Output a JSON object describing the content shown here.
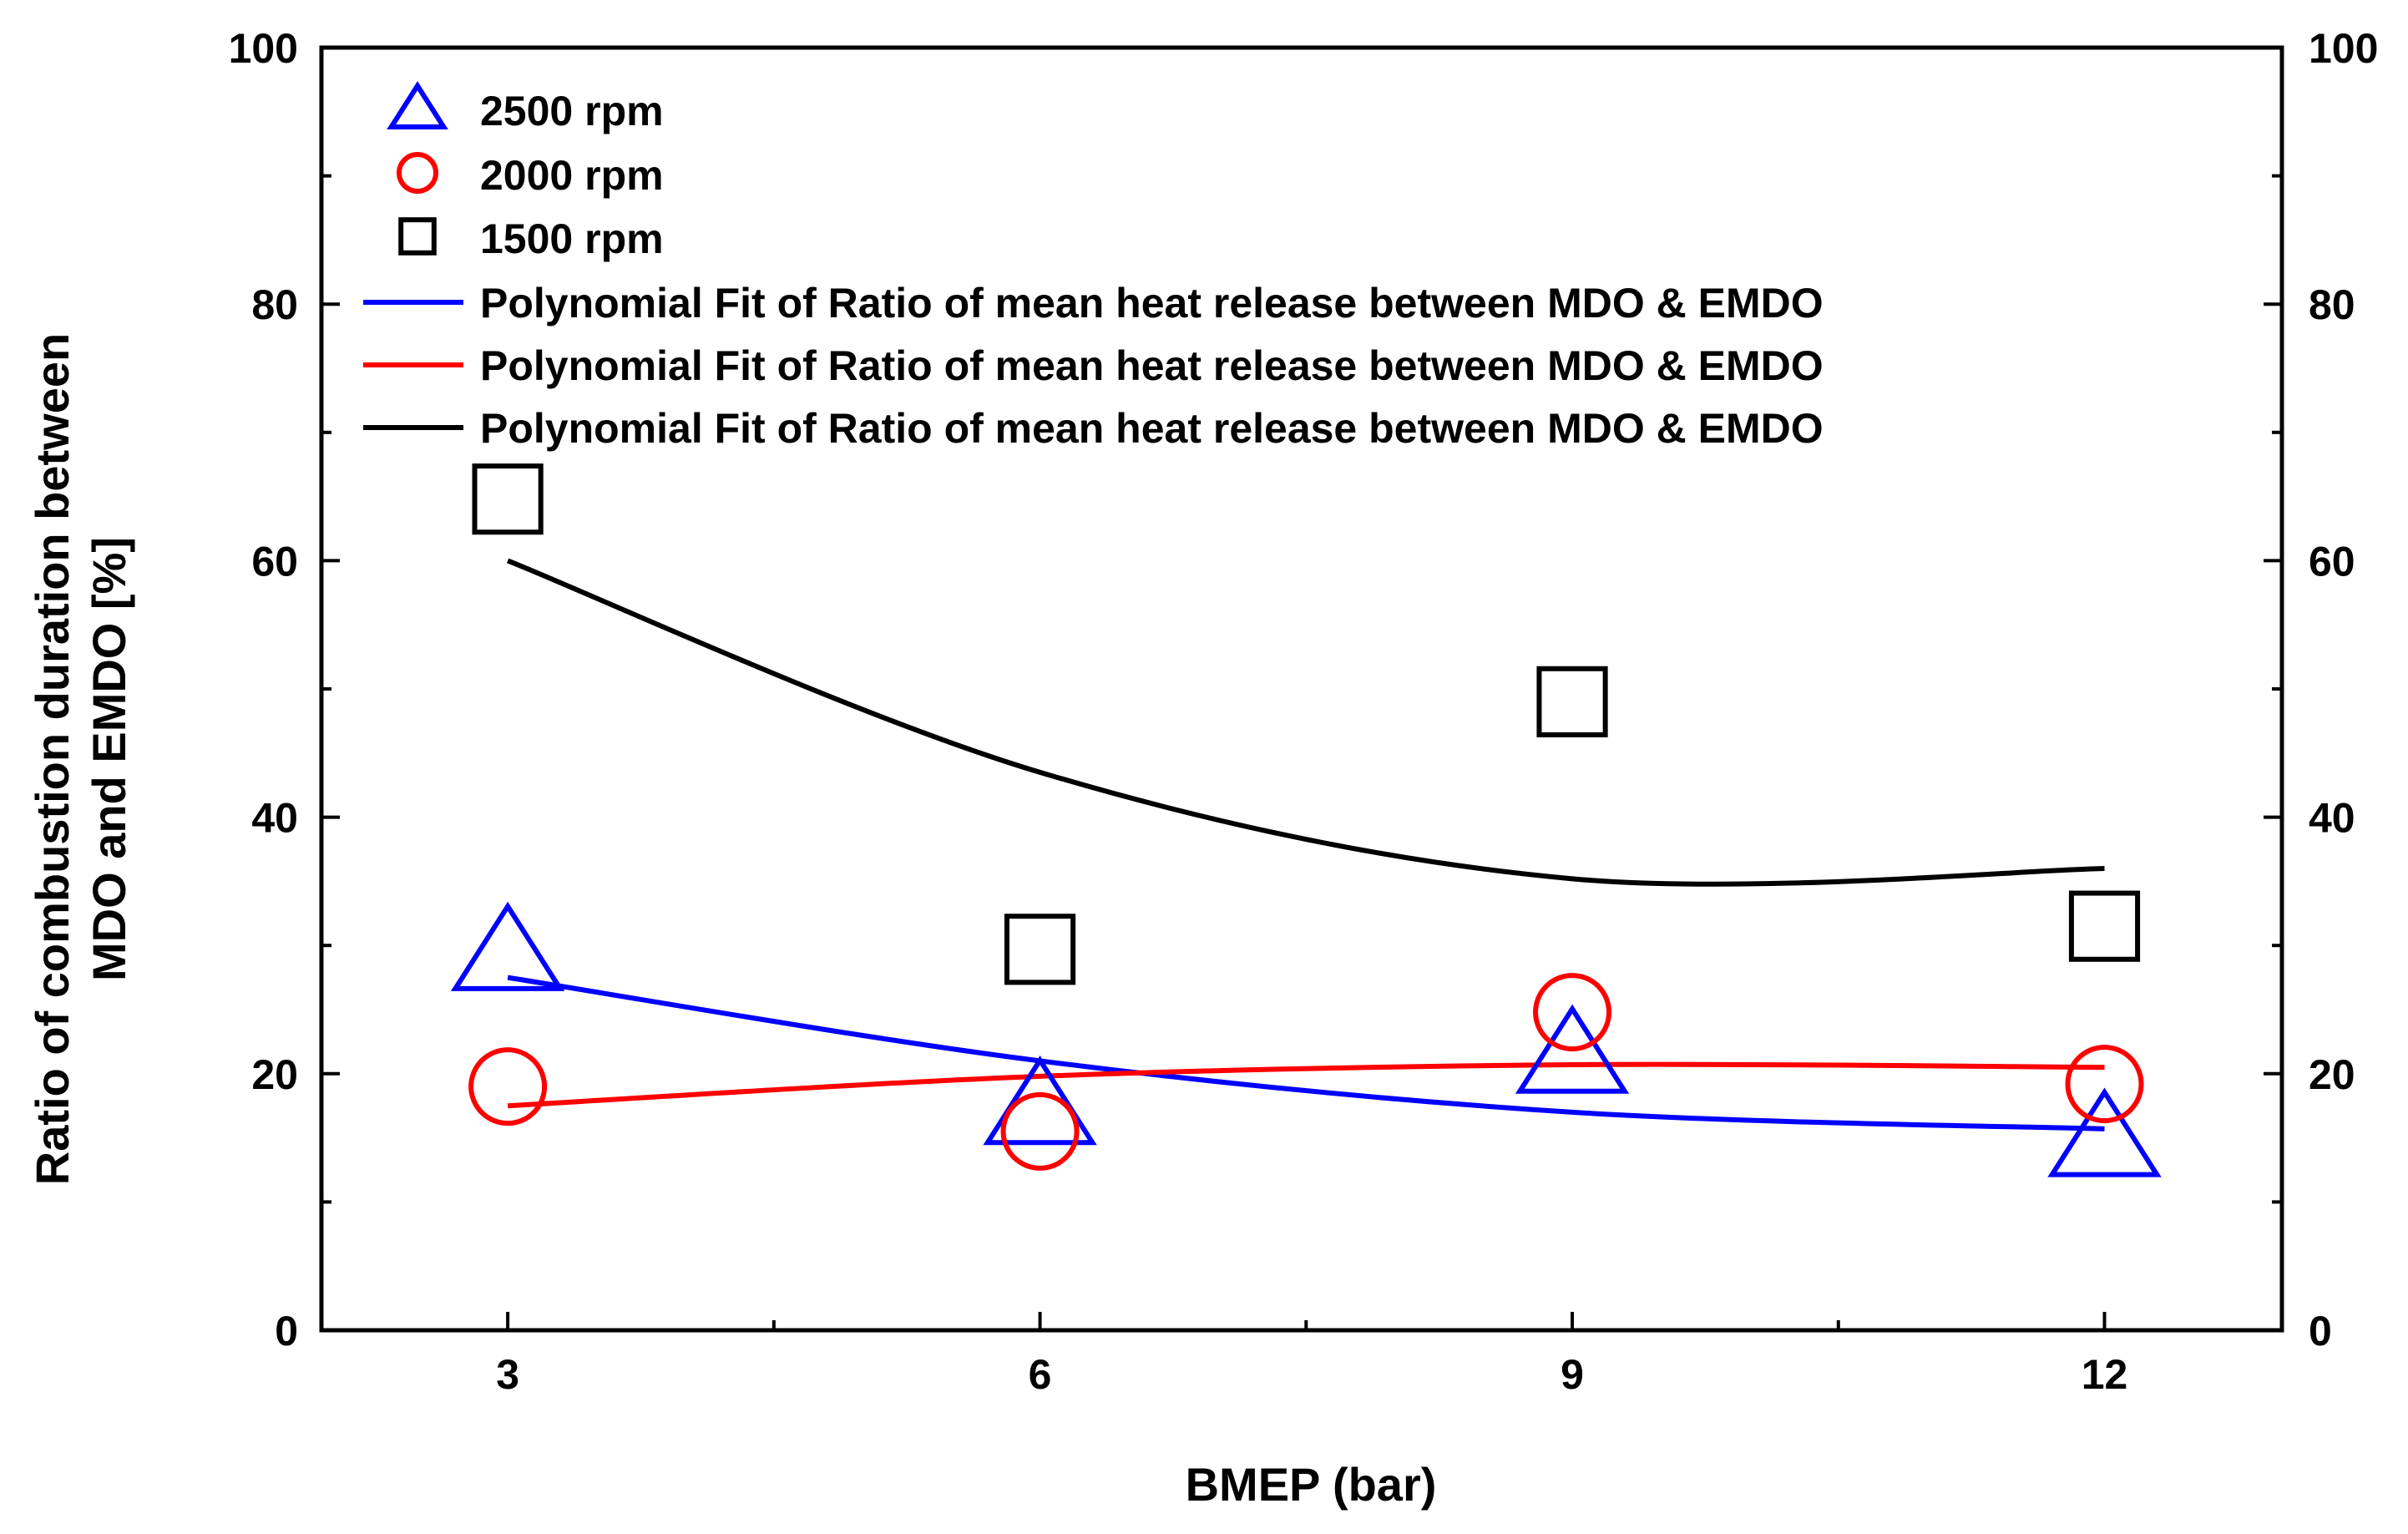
{
  "chart_data": {
    "type": "scatter",
    "xlabel": "BMEP (bar)",
    "ylabel_line1": "Ratio of combustion duration between",
    "ylabel_line2": "MDO and EMDO [%]",
    "xlim": [
      1.95,
      13.0
    ],
    "ylim": [
      0,
      100
    ],
    "x_ticks": [
      3,
      6,
      9,
      12
    ],
    "x_minor_ticks": [
      4.5,
      7.5,
      10.5
    ],
    "y_ticks": [
      0,
      20,
      40,
      60,
      80,
      100
    ],
    "y_minor_ticks": [
      10,
      30,
      50,
      70,
      90
    ],
    "right_axis_ticks": [
      0,
      20,
      40,
      60,
      80,
      100
    ],
    "legend_position": "top-left",
    "series": [
      {
        "name": "2500 rpm",
        "marker": "triangle",
        "color": "#0000ff",
        "x": [
          3,
          6,
          9,
          12
        ],
        "y": [
          29.5,
          17.5,
          21.5,
          15.0
        ]
      },
      {
        "name": "2000 rpm",
        "marker": "circle",
        "color": "#ff0000",
        "x": [
          3,
          6,
          9,
          12
        ],
        "y": [
          19.0,
          15.5,
          24.8,
          19.2
        ]
      },
      {
        "name": "1500 rpm",
        "marker": "square",
        "color": "#000000",
        "x": [
          3,
          6,
          9,
          12
        ],
        "y": [
          64.8,
          29.7,
          49.0,
          31.5
        ]
      }
    ],
    "fits": [
      {
        "name": "Polynomial Fit of Ratio of mean heat release between MDO & EMDO",
        "color": "#0000ff",
        "x": [
          3,
          6,
          9,
          12
        ],
        "y": [
          27.5,
          21.0,
          17.0,
          15.7
        ]
      },
      {
        "name": "Polynomial Fit of Ratio of mean heat release between MDO & EMDO",
        "color": "#ff0000",
        "x": [
          3,
          6,
          9,
          12
        ],
        "y": [
          17.5,
          19.8,
          20.7,
          20.5
        ]
      },
      {
        "name": "Polynomial Fit of Ratio of mean heat release between MDO & EMDO",
        "color": "#000000",
        "x": [
          3,
          6,
          9,
          12
        ],
        "y": [
          60.0,
          43.5,
          35.2,
          36.0
        ]
      }
    ]
  }
}
